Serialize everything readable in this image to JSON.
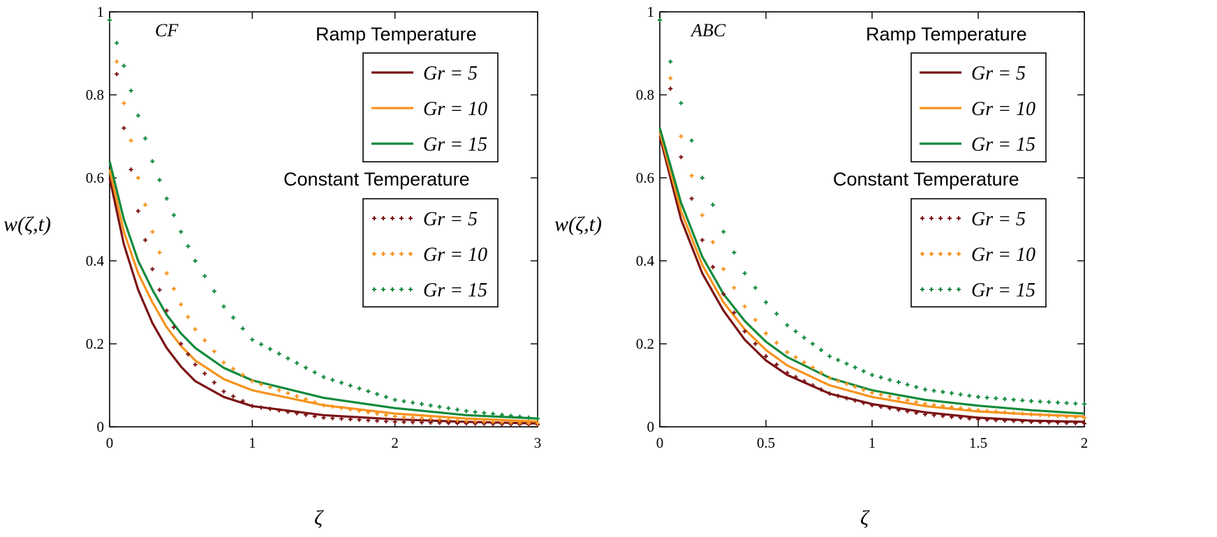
{
  "colors": {
    "gr5": "#7b1315",
    "gr10": "#f7931e",
    "gr15": "#128a3c",
    "axis": "#000000"
  },
  "chart_data": [
    {
      "type": "line",
      "method": "CF",
      "xlabel": "ζ",
      "ylabel": "w(ζ,t)",
      "xlim": [
        0,
        3
      ],
      "ylim": [
        0,
        1
      ],
      "xticks": [
        {
          "v": 0,
          "label": "0"
        },
        {
          "v": 1,
          "label": "1"
        },
        {
          "v": 2,
          "label": "2"
        },
        {
          "v": 3,
          "label": "3"
        }
      ],
      "yticks": [
        {
          "v": 0,
          "label": "0"
        },
        {
          "v": 0.2,
          "label": "0.2"
        },
        {
          "v": 0.4,
          "label": "0.4"
        },
        {
          "v": 0.6,
          "label": "0.6"
        },
        {
          "v": 0.8,
          "label": "0.8"
        },
        {
          "v": 1,
          "label": "1"
        }
      ],
      "legend_ramp_title": "Ramp Temperature",
      "legend_const_title": "Constant Temperature",
      "series": [
        {
          "name": "Gr = 5",
          "gr": "5",
          "style": "solid",
          "color_key": "gr5",
          "x": [
            0,
            0.1,
            0.2,
            0.3,
            0.4,
            0.5,
            0.6,
            0.8,
            1,
            1.5,
            2,
            2.5,
            3
          ],
          "y": [
            0.6,
            0.44,
            0.33,
            0.25,
            0.19,
            0.145,
            0.11,
            0.072,
            0.05,
            0.028,
            0.018,
            0.012,
            0.008
          ]
        },
        {
          "name": "Gr = 10",
          "gr": "10",
          "style": "solid",
          "color_key": "gr10",
          "x": [
            0,
            0.1,
            0.2,
            0.3,
            0.4,
            0.5,
            0.6,
            0.8,
            1,
            1.5,
            2,
            2.5,
            3
          ],
          "y": [
            0.62,
            0.47,
            0.37,
            0.3,
            0.24,
            0.195,
            0.16,
            0.115,
            0.088,
            0.052,
            0.032,
            0.02,
            0.013
          ]
        },
        {
          "name": "Gr = 15",
          "gr": "15",
          "style": "solid",
          "color_key": "gr15",
          "x": [
            0,
            0.1,
            0.2,
            0.3,
            0.4,
            0.5,
            0.6,
            0.8,
            1,
            1.5,
            2,
            2.5,
            3
          ],
          "y": [
            0.64,
            0.5,
            0.4,
            0.33,
            0.27,
            0.225,
            0.19,
            0.142,
            0.112,
            0.07,
            0.045,
            0.028,
            0.02
          ]
        },
        {
          "name": "Gr = 5",
          "gr": "5",
          "style": "dotted",
          "color_key": "gr5",
          "x": [
            0,
            0.1,
            0.2,
            0.3,
            0.4,
            0.5,
            0.6,
            0.8,
            1,
            1.5,
            2,
            2.5,
            3
          ],
          "y": [
            0.98,
            0.72,
            0.52,
            0.38,
            0.28,
            0.2,
            0.15,
            0.085,
            0.05,
            0.022,
            0.012,
            0.008,
            0.005
          ]
        },
        {
          "name": "Gr = 10",
          "gr": "10",
          "style": "dotted",
          "color_key": "gr10",
          "x": [
            0,
            0.1,
            0.2,
            0.3,
            0.4,
            0.5,
            0.6,
            0.8,
            1,
            1.5,
            2,
            2.5,
            3
          ],
          "y": [
            0.98,
            0.78,
            0.6,
            0.47,
            0.37,
            0.295,
            0.235,
            0.155,
            0.11,
            0.052,
            0.025,
            0.014,
            0.008
          ]
        },
        {
          "name": "Gr = 15",
          "gr": "15",
          "style": "dotted",
          "color_key": "gr15",
          "x": [
            0,
            0.1,
            0.2,
            0.3,
            0.4,
            0.5,
            0.6,
            0.8,
            1,
            1.5,
            2,
            2.5,
            3
          ],
          "y": [
            0.98,
            0.87,
            0.75,
            0.64,
            0.55,
            0.47,
            0.4,
            0.29,
            0.21,
            0.12,
            0.065,
            0.038,
            0.02
          ]
        }
      ]
    },
    {
      "type": "line",
      "method": "ABC",
      "xlabel": "ζ",
      "ylabel": "w(ζ,t)",
      "xlim": [
        0,
        2
      ],
      "ylim": [
        0,
        1
      ],
      "xticks": [
        {
          "v": 0,
          "label": "0"
        },
        {
          "v": 0.5,
          "label": "0.5"
        },
        {
          "v": 1,
          "label": "1"
        },
        {
          "v": 1.5,
          "label": "1.5"
        },
        {
          "v": 2,
          "label": "2"
        }
      ],
      "yticks": [
        {
          "v": 0,
          "label": "0"
        },
        {
          "v": 0.2,
          "label": "0.2"
        },
        {
          "v": 0.4,
          "label": "0.4"
        },
        {
          "v": 0.6,
          "label": "0.6"
        },
        {
          "v": 0.8,
          "label": "0.8"
        },
        {
          "v": 1,
          "label": "1"
        }
      ],
      "legend_ramp_title": "Ramp Temperature",
      "legend_const_title": "Constant Temperature",
      "series": [
        {
          "name": "Gr = 5",
          "gr": "5",
          "style": "solid",
          "color_key": "gr5",
          "x": [
            0,
            0.1,
            0.2,
            0.3,
            0.4,
            0.5,
            0.6,
            0.8,
            1,
            1.25,
            1.5,
            1.75,
            2
          ],
          "y": [
            0.7,
            0.5,
            0.37,
            0.28,
            0.21,
            0.16,
            0.125,
            0.08,
            0.055,
            0.035,
            0.022,
            0.015,
            0.012
          ]
        },
        {
          "name": "Gr = 10",
          "gr": "10",
          "style": "solid",
          "color_key": "gr10",
          "x": [
            0,
            0.1,
            0.2,
            0.3,
            0.4,
            0.5,
            0.6,
            0.8,
            1,
            1.25,
            1.5,
            1.75,
            2
          ],
          "y": [
            0.71,
            0.52,
            0.39,
            0.3,
            0.235,
            0.185,
            0.148,
            0.1,
            0.072,
            0.05,
            0.037,
            0.03,
            0.025
          ]
        },
        {
          "name": "Gr = 15",
          "gr": "15",
          "style": "solid",
          "color_key": "gr15",
          "x": [
            0,
            0.1,
            0.2,
            0.3,
            0.4,
            0.5,
            0.6,
            0.8,
            1,
            1.25,
            1.5,
            1.75,
            2
          ],
          "y": [
            0.72,
            0.54,
            0.41,
            0.32,
            0.255,
            0.205,
            0.168,
            0.118,
            0.088,
            0.065,
            0.051,
            0.04,
            0.032
          ]
        },
        {
          "name": "Gr = 5",
          "gr": "5",
          "style": "dotted",
          "color_key": "gr5",
          "x": [
            0,
            0.1,
            0.2,
            0.3,
            0.4,
            0.5,
            0.6,
            0.8,
            1,
            1.25,
            1.5,
            1.75,
            2
          ],
          "y": [
            0.98,
            0.65,
            0.45,
            0.32,
            0.23,
            0.17,
            0.13,
            0.08,
            0.052,
            0.03,
            0.018,
            0.012,
            0.008
          ]
        },
        {
          "name": "Gr = 10",
          "gr": "10",
          "style": "dotted",
          "color_key": "gr10",
          "x": [
            0,
            0.1,
            0.2,
            0.3,
            0.4,
            0.5,
            0.6,
            0.8,
            1,
            1.25,
            1.5,
            1.75,
            2
          ],
          "y": [
            0.98,
            0.7,
            0.51,
            0.38,
            0.29,
            0.225,
            0.18,
            0.118,
            0.082,
            0.055,
            0.04,
            0.03,
            0.022
          ]
        },
        {
          "name": "Gr = 15",
          "gr": "15",
          "style": "dotted",
          "color_key": "gr15",
          "x": [
            0,
            0.1,
            0.2,
            0.3,
            0.4,
            0.5,
            0.6,
            0.8,
            1,
            1.25,
            1.5,
            1.75,
            2
          ],
          "y": [
            0.98,
            0.78,
            0.6,
            0.47,
            0.37,
            0.3,
            0.245,
            0.17,
            0.125,
            0.09,
            0.072,
            0.062,
            0.055
          ]
        }
      ]
    }
  ]
}
